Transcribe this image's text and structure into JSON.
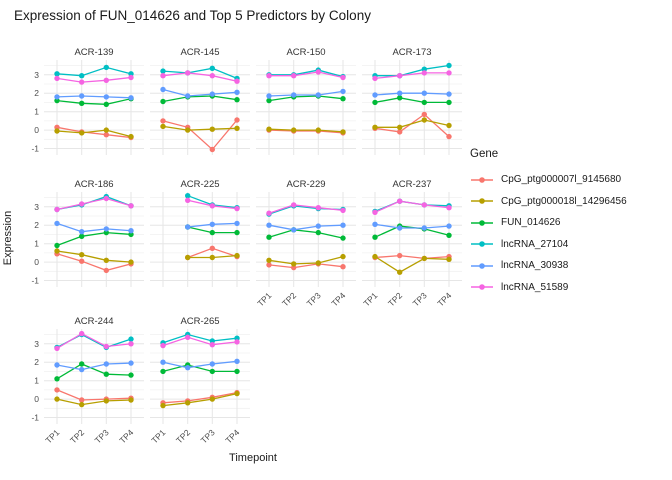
{
  "title": "Expression of FUN_014626 and Top 5 Predictors by Colony",
  "axes": {
    "x_title": "Timepoint",
    "y_title": "Expression",
    "x_ticks": [
      "TP1",
      "TP2",
      "TP3",
      "TP4"
    ],
    "y_ticks": [
      3,
      2,
      1,
      0,
      -1
    ]
  },
  "legend": {
    "title": "Gene",
    "entries": [
      {
        "label": "CpG_ptg000007l_9145680",
        "color": "#F8766D"
      },
      {
        "label": "CpG_ptg000018l_14296456",
        "color": "#B79F00"
      },
      {
        "label": "FUN_014626",
        "color": "#00BA38"
      },
      {
        "label": "lncRNA_27104",
        "color": "#00BFC4"
      },
      {
        "label": "lncRNA_30938",
        "color": "#619CFF"
      },
      {
        "label": "lncRNA_51589",
        "color": "#F564E2"
      }
    ]
  },
  "chart_data": {
    "type": "line",
    "facet_by": "Colony",
    "x": [
      "TP1",
      "TP2",
      "TP3",
      "TP4"
    ],
    "ylim": [
      -1.35,
      3.8
    ],
    "grid": true,
    "legend_position": "right",
    "genes": [
      "CpG_ptg000007l_9145680",
      "CpG_ptg000018l_14296456",
      "FUN_014626",
      "lncRNA_27104",
      "lncRNA_30938",
      "lncRNA_51589"
    ],
    "facets": [
      {
        "name": "ACR-139",
        "values": [
          [
            0.15,
            -0.1,
            -0.25,
            -0.4
          ],
          [
            -0.05,
            -0.15,
            0.0,
            -0.35
          ],
          [
            1.6,
            1.45,
            1.4,
            1.7
          ],
          [
            3.05,
            2.95,
            3.4,
            3.05
          ],
          [
            1.8,
            1.85,
            1.8,
            1.75
          ],
          [
            2.8,
            2.6,
            2.7,
            2.85
          ]
        ]
      },
      {
        "name": "ACR-145",
        "values": [
          [
            0.5,
            0.15,
            -1.05,
            0.55
          ],
          [
            0.2,
            0.0,
            0.05,
            0.1
          ],
          [
            1.55,
            1.8,
            1.85,
            1.65
          ],
          [
            3.2,
            3.1,
            3.35,
            2.8
          ],
          [
            2.2,
            1.85,
            1.95,
            2.05
          ],
          [
            2.95,
            3.1,
            2.95,
            2.65
          ]
        ]
      },
      {
        "name": "ACR-150",
        "values": [
          [
            0.0,
            -0.05,
            -0.05,
            -0.15
          ],
          [
            0.05,
            0.0,
            0.0,
            -0.1
          ],
          [
            1.6,
            1.8,
            1.85,
            1.7
          ],
          [
            3.0,
            3.0,
            3.25,
            2.9
          ],
          [
            1.85,
            1.9,
            1.9,
            2.1
          ],
          [
            2.95,
            2.95,
            3.15,
            2.85
          ]
        ]
      },
      {
        "name": "ACR-173",
        "values": [
          [
            0.1,
            -0.1,
            0.85,
            -0.35
          ],
          [
            0.15,
            0.15,
            0.55,
            0.25
          ],
          [
            1.5,
            1.75,
            1.5,
            1.5
          ],
          [
            2.95,
            2.95,
            3.3,
            3.5
          ],
          [
            1.9,
            2.0,
            2.0,
            1.95
          ],
          [
            2.8,
            2.95,
            3.1,
            3.1
          ]
        ]
      },
      {
        "name": "ACR-186",
        "values": [
          [
            0.45,
            0.05,
            -0.45,
            -0.1
          ],
          [
            0.6,
            0.4,
            0.1,
            0.0
          ],
          [
            0.9,
            1.4,
            1.6,
            1.5
          ],
          [
            2.85,
            3.1,
            3.55,
            3.05
          ],
          [
            2.1,
            1.65,
            1.8,
            1.7
          ],
          [
            2.85,
            3.15,
            3.45,
            3.05
          ]
        ]
      },
      {
        "name": "ACR-225",
        "values": [
          [
            null,
            0.25,
            0.75,
            0.3
          ],
          [
            null,
            0.25,
            0.25,
            0.35
          ],
          [
            null,
            1.9,
            1.6,
            1.6
          ],
          [
            null,
            3.6,
            3.1,
            2.95
          ],
          [
            null,
            1.9,
            2.05,
            2.1
          ],
          [
            null,
            3.35,
            3.05,
            2.9
          ]
        ]
      },
      {
        "name": "ACR-229",
        "values": [
          [
            -0.15,
            -0.3,
            -0.1,
            -0.25
          ],
          [
            0.1,
            -0.1,
            -0.05,
            0.3
          ],
          [
            1.35,
            1.75,
            1.6,
            1.3
          ],
          [
            2.6,
            3.05,
            2.9,
            2.85
          ],
          [
            2.0,
            1.75,
            1.95,
            2.0
          ],
          [
            2.65,
            3.1,
            2.95,
            2.8
          ]
        ]
      },
      {
        "name": "ACR-237",
        "values": [
          [
            0.25,
            0.35,
            0.2,
            0.3
          ],
          [
            0.3,
            -0.55,
            0.2,
            0.15
          ],
          [
            1.35,
            1.95,
            1.8,
            1.45
          ],
          [
            2.75,
            3.3,
            3.1,
            3.05
          ],
          [
            2.05,
            1.85,
            1.85,
            1.95
          ],
          [
            2.7,
            3.3,
            3.1,
            2.95
          ]
        ]
      },
      {
        "name": "ACR-244",
        "values": [
          [
            0.5,
            -0.05,
            0.0,
            0.05
          ],
          [
            0.0,
            -0.3,
            -0.1,
            -0.05
          ],
          [
            1.1,
            1.9,
            1.35,
            1.3
          ],
          [
            2.8,
            3.5,
            2.8,
            3.25
          ],
          [
            1.85,
            1.6,
            1.9,
            1.95
          ],
          [
            2.75,
            3.55,
            2.85,
            3.0
          ]
        ]
      },
      {
        "name": "ACR-265",
        "values": [
          [
            -0.2,
            -0.1,
            0.1,
            0.35
          ],
          [
            -0.35,
            -0.2,
            0.0,
            0.3
          ],
          [
            1.5,
            1.85,
            1.5,
            1.5
          ],
          [
            3.05,
            3.5,
            3.15,
            3.3
          ],
          [
            2.0,
            1.7,
            1.9,
            2.05
          ],
          [
            2.9,
            3.35,
            2.95,
            3.1
          ]
        ]
      }
    ]
  }
}
